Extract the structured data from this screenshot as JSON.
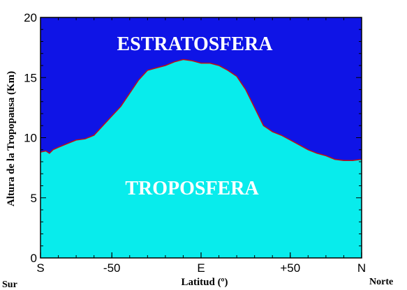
{
  "chart_data": {
    "type": "area",
    "title": "",
    "xlabel": "Latitud (º)",
    "ylabel": "Altura de la Tropopausa (Km)",
    "x_tick_labels": [
      "S",
      "-50",
      "E",
      "+50",
      "N"
    ],
    "x_ticks": [
      -90,
      -50,
      0,
      50,
      90
    ],
    "xlim": [
      -90,
      90
    ],
    "y_ticks": [
      0,
      5,
      10,
      15,
      20
    ],
    "y_tick_labels": [
      "0",
      "5",
      "10",
      "15",
      "20"
    ],
    "ylim": [
      0,
      20
    ],
    "grid": false,
    "corner_labels": {
      "left": "Sur",
      "right": "Norte"
    },
    "regions": {
      "upper": "ESTRATOSFERA",
      "lower": "TROPOSFERA"
    },
    "colors": {
      "stratosphere": "#0f14e6",
      "troposphere": "#08ecec",
      "boundary": "#c01010"
    },
    "series": [
      {
        "x": [
          -90,
          -87,
          -85,
          -83,
          -80,
          -75,
          -70,
          -65,
          -60,
          -55,
          -50,
          -45,
          -40,
          -35,
          -30,
          -25,
          -20,
          -15,
          -10,
          -5,
          0,
          5,
          10,
          15,
          20,
          25,
          30,
          35,
          40,
          45,
          50,
          55,
          60,
          65,
          70,
          75,
          80,
          85,
          90
        ],
        "values": [
          8.8,
          8.9,
          8.7,
          9.0,
          9.2,
          9.5,
          9.8,
          9.9,
          10.2,
          11.0,
          11.8,
          12.6,
          13.7,
          14.8,
          15.6,
          15.8,
          16.0,
          16.3,
          16.5,
          16.4,
          16.2,
          16.2,
          16.0,
          15.6,
          15.1,
          14.0,
          12.5,
          11.0,
          10.5,
          10.2,
          9.8,
          9.4,
          9.0,
          8.7,
          8.5,
          8.2,
          8.1,
          8.1,
          8.2
        ]
      }
    ]
  }
}
